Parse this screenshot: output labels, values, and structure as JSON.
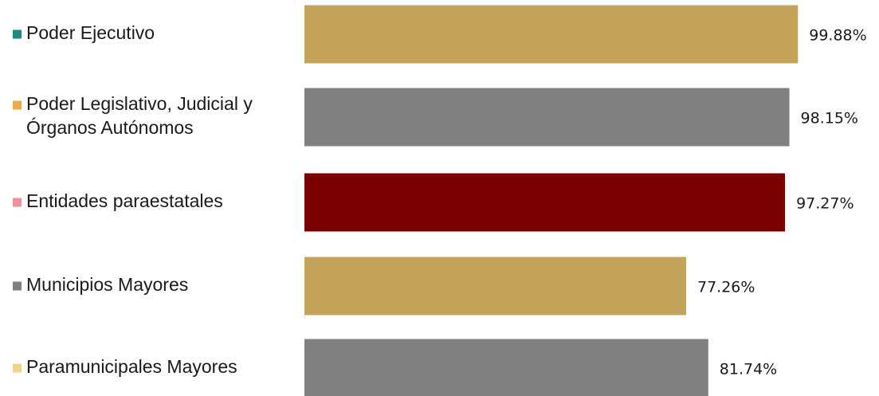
{
  "chart_data": {
    "type": "bar",
    "orientation": "horizontal",
    "categories": [
      [
        "Poder Ejecutivo"
      ],
      [
        "Poder Legislativo, Judicial y",
        "Órganos Autónomos"
      ],
      [
        "Entidades paraestatales"
      ],
      [
        "Municipios Mayores"
      ],
      [
        "Paramunicipales Mayores"
      ]
    ],
    "values": [
      99.88,
      98.15,
      97.27,
      77.26,
      81.74
    ],
    "value_labels": [
      "99.88%",
      "98.15%",
      "97.27%",
      "77.26%",
      "81.74%"
    ],
    "bar_colors": [
      "#C4A35A",
      "#808080",
      "#7A0000",
      "#C4A35A",
      "#808080"
    ],
    "legend_marker_colors": [
      "#1F8B7E",
      "#E8A94F",
      "#EE939C",
      "#808080",
      "#EDD58F"
    ],
    "xlim": [
      0,
      100
    ],
    "grid": false,
    "title": "",
    "xlabel": "",
    "ylabel": ""
  }
}
